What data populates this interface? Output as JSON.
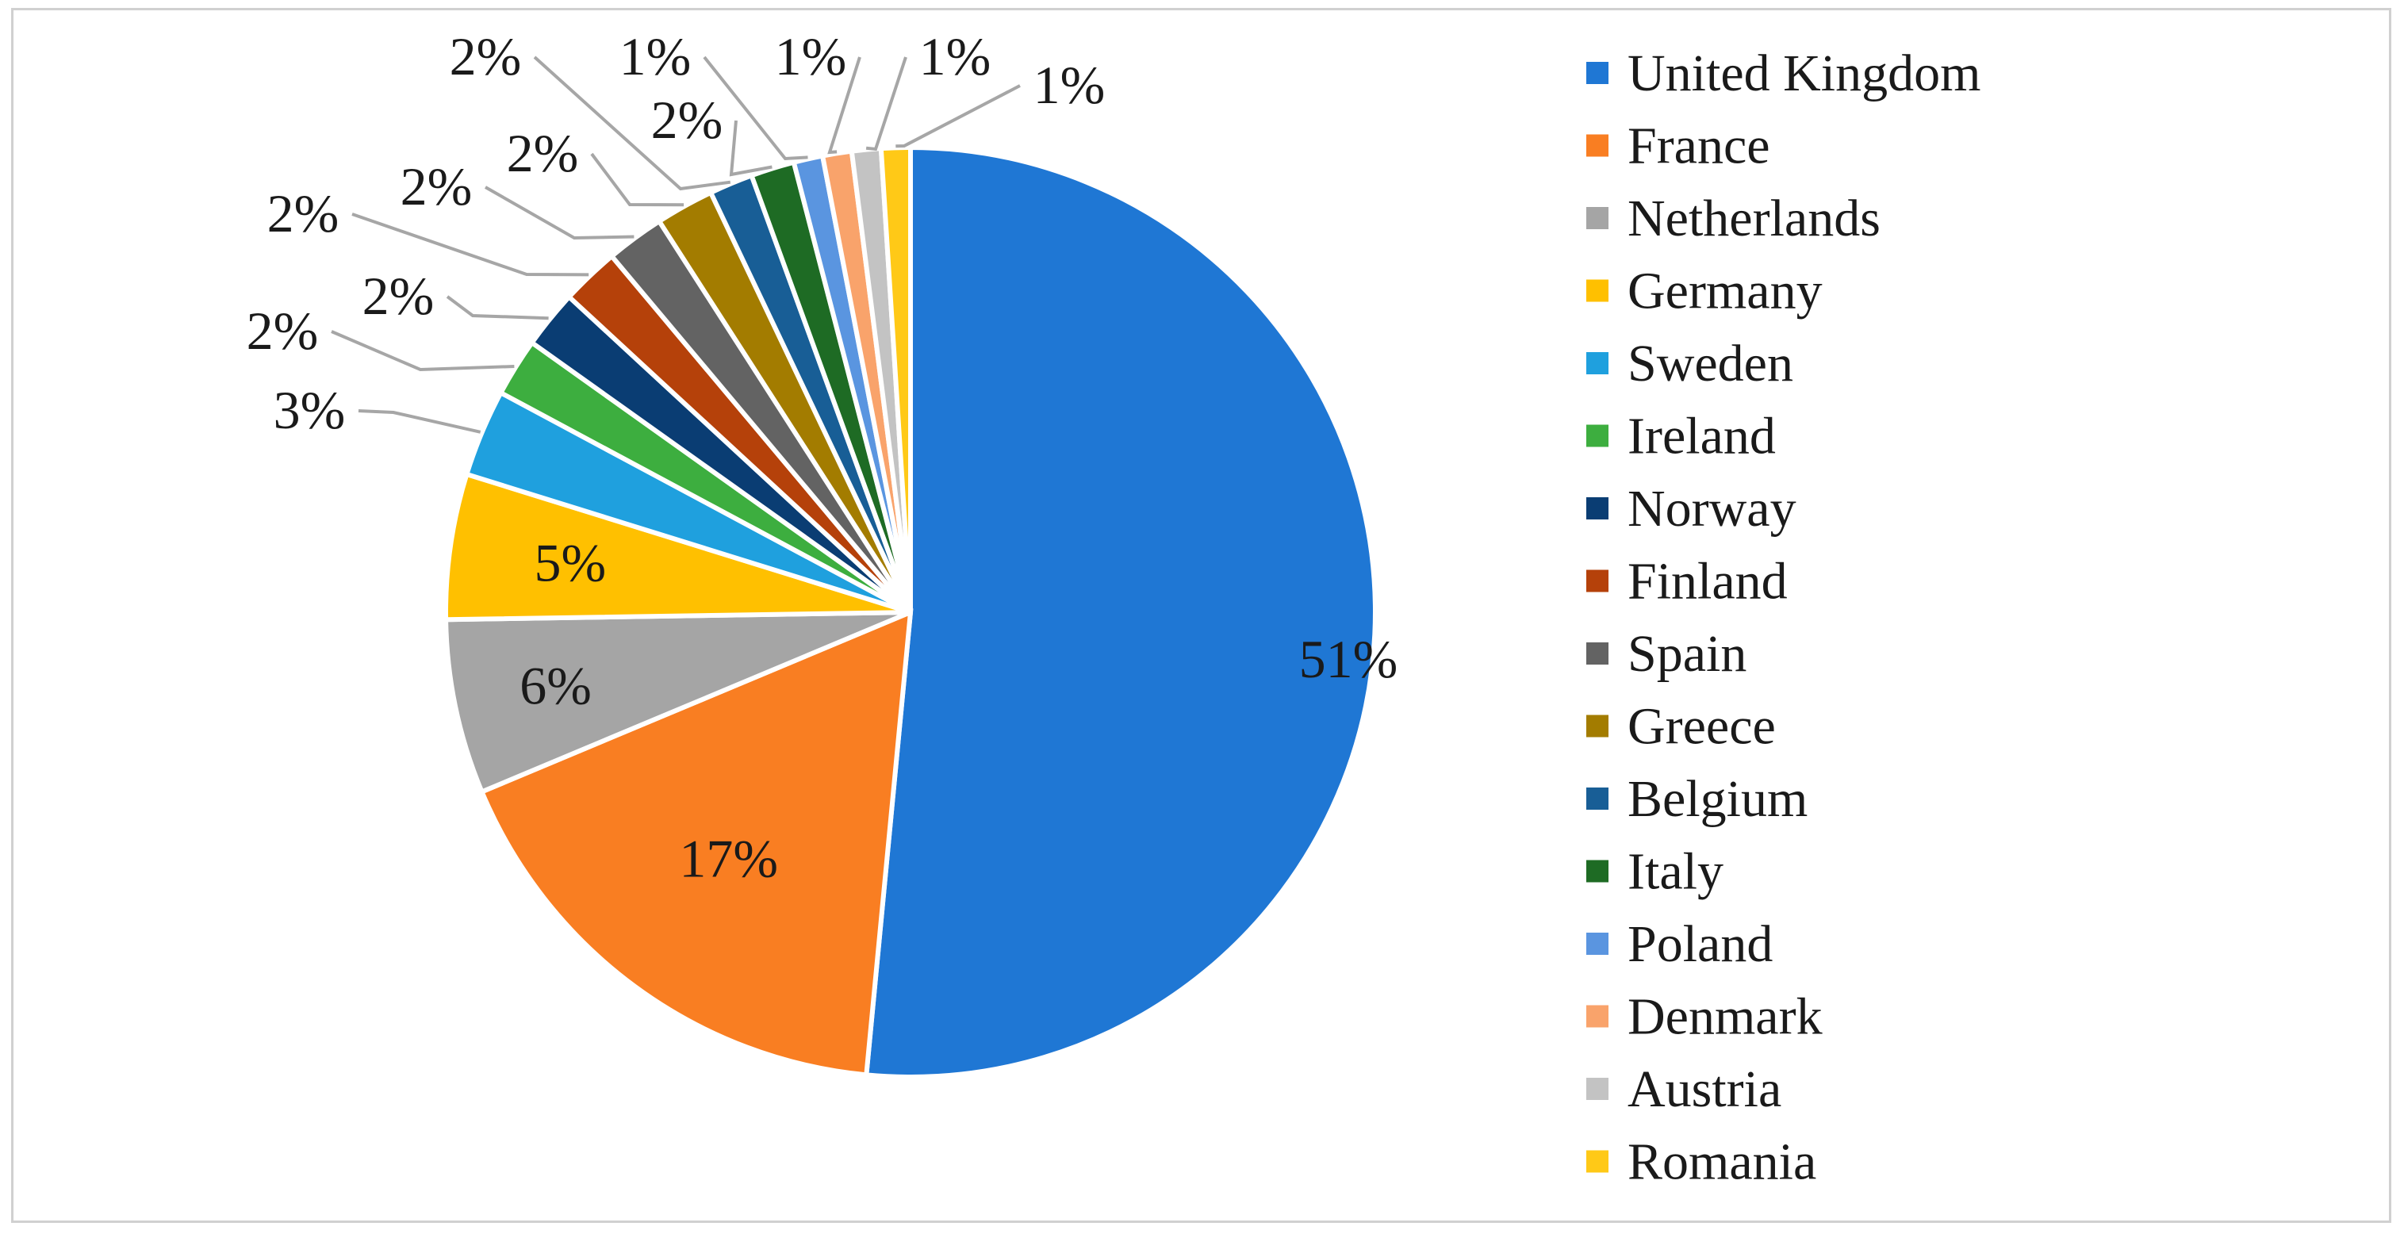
{
  "chart_data": {
    "type": "pie",
    "title": "",
    "legend_position": "right",
    "slices": [
      {
        "label": "United Kingdom",
        "value": 51,
        "display": "51%",
        "color": "#1F77D4"
      },
      {
        "label": "France",
        "value": 17,
        "display": "17%",
        "color": "#F97E22"
      },
      {
        "label": "Netherlands",
        "value": 6,
        "display": "6%",
        "color": "#A5A5A5"
      },
      {
        "label": "Germany",
        "value": 5,
        "display": "5%",
        "color": "#FFC000"
      },
      {
        "label": "Sweden",
        "value": 3,
        "display": "3%",
        "color": "#1FA0DE"
      },
      {
        "label": "Ireland",
        "value": 2,
        "display": "2%",
        "color": "#3DAE3F"
      },
      {
        "label": "Norway",
        "value": 2,
        "display": "2%",
        "color": "#0A3D73"
      },
      {
        "label": "Finland",
        "value": 2,
        "display": "2%",
        "color": "#B5410A"
      },
      {
        "label": "Spain",
        "value": 2,
        "display": "2%",
        "color": "#636363"
      },
      {
        "label": "Greece",
        "value": 2,
        "display": "2%",
        "color": "#A37C00"
      },
      {
        "label": "Belgium",
        "value": 1.5,
        "display": "2%",
        "color": "#185E96"
      },
      {
        "label": "Italy",
        "value": 1.5,
        "display": "2%",
        "color": "#1E6B24"
      },
      {
        "label": "Poland",
        "value": 1,
        "display": "1%",
        "color": "#5A95E0"
      },
      {
        "label": "Denmark",
        "value": 1,
        "display": "1%",
        "color": "#F9A36B"
      },
      {
        "label": "Austria",
        "value": 1,
        "display": "1%",
        "color": "#C3C3C3"
      },
      {
        "label": "Romania",
        "value": 1,
        "display": "1%",
        "color": "#FFC917"
      }
    ]
  }
}
